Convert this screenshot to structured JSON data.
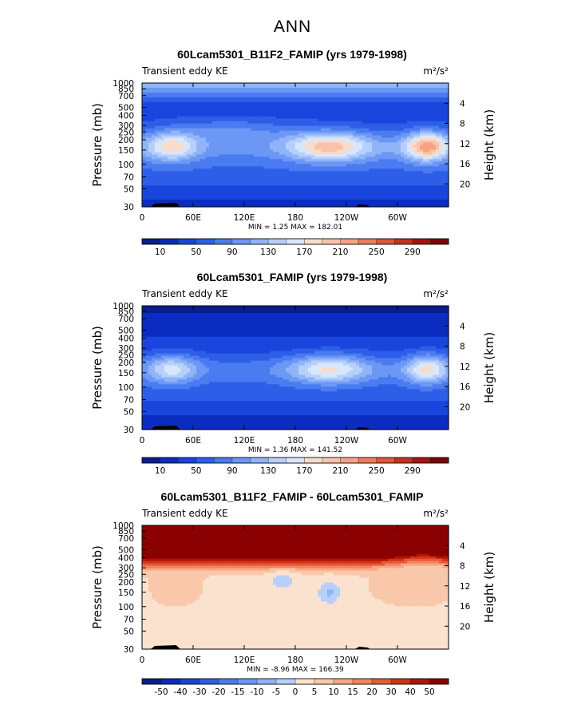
{
  "main_title": "ANN",
  "panel_shared": {
    "x_ticks": [
      "0",
      "60E",
      "120E",
      "180",
      "120W",
      "60W"
    ],
    "x_positions": [
      0,
      60,
      120,
      180,
      240,
      300
    ],
    "xlim": [
      0,
      360
    ],
    "p_ticks": [
      "30",
      "50",
      "70",
      "100",
      "150",
      "200",
      "250",
      "300",
      "400",
      "500",
      "700",
      "850",
      "1000"
    ],
    "p_values": [
      30,
      50,
      70,
      100,
      150,
      200,
      250,
      300,
      400,
      500,
      700,
      850,
      1000
    ],
    "h_ticks": [
      "20",
      "16",
      "12",
      "8",
      "4"
    ],
    "h_values": [
      20,
      16,
      12,
      8,
      4
    ],
    "ylabel": "Pressure (mb)",
    "ylabel_right": "Height (km)",
    "subtitle_left": "Transient eddy KE",
    "units": "m²/s²"
  },
  "chart_data": [
    {
      "type": "heatmap",
      "title": "60Lcam5301_B11F2_FAMIP (yrs 1979-1998)",
      "stats": "MIN =    1.25  MAX = 182.01",
      "levels": [
        "10",
        "50",
        "90",
        "130",
        "170",
        "210",
        "250",
        "290"
      ],
      "colors": [
        "#081d8f",
        "#0a2cc0",
        "#1a45dd",
        "#2d5ee8",
        "#4a7bf0",
        "#6c98f5",
        "#90b4f8",
        "#b7d0fb",
        "#d8e7fd",
        "#f7dccc",
        "#f9c3a8",
        "#f6a283",
        "#ef7c5c",
        "#e25538",
        "#c8301e",
        "#a5140f",
        "#7c0407"
      ]
    },
    {
      "type": "heatmap",
      "title": "60Lcam5301_FAMIP (yrs 1979-1998)",
      "stats": "MIN =    1.36  MAX = 141.52",
      "levels": [
        "10",
        "50",
        "90",
        "130",
        "170",
        "210",
        "250",
        "290"
      ],
      "colors": [
        "#081d8f",
        "#0a2cc0",
        "#1a45dd",
        "#2d5ee8",
        "#4a7bf0",
        "#6c98f5",
        "#90b4f8",
        "#b7d0fb",
        "#d8e7fd",
        "#f7dccc",
        "#f9c3a8",
        "#f6a283",
        "#ef7c5c",
        "#e25538",
        "#c8301e",
        "#a5140f",
        "#7c0407"
      ]
    },
    {
      "type": "heatmap",
      "title": "60Lcam5301_B11F2_FAMIP - 60Lcam5301_FAMIP",
      "stats": "MIN =   -8.96  MAX = 166.39",
      "levels": [
        "-50",
        "-40",
        "-30",
        "-20",
        "-15",
        "-10",
        "-5",
        "0",
        "5",
        "10",
        "15",
        "20",
        "30",
        "40",
        "50"
      ],
      "colors": [
        "#081d8f",
        "#0a2cc0",
        "#1a45dd",
        "#2d5ee8",
        "#4a7bf0",
        "#6c98f5",
        "#90b4f8",
        "#b7d0fb",
        "#fbe2cf",
        "#f9c8aa",
        "#f6a886",
        "#f08560",
        "#e85b37",
        "#d13318",
        "#b0150a",
        "#8b0000"
      ]
    }
  ]
}
